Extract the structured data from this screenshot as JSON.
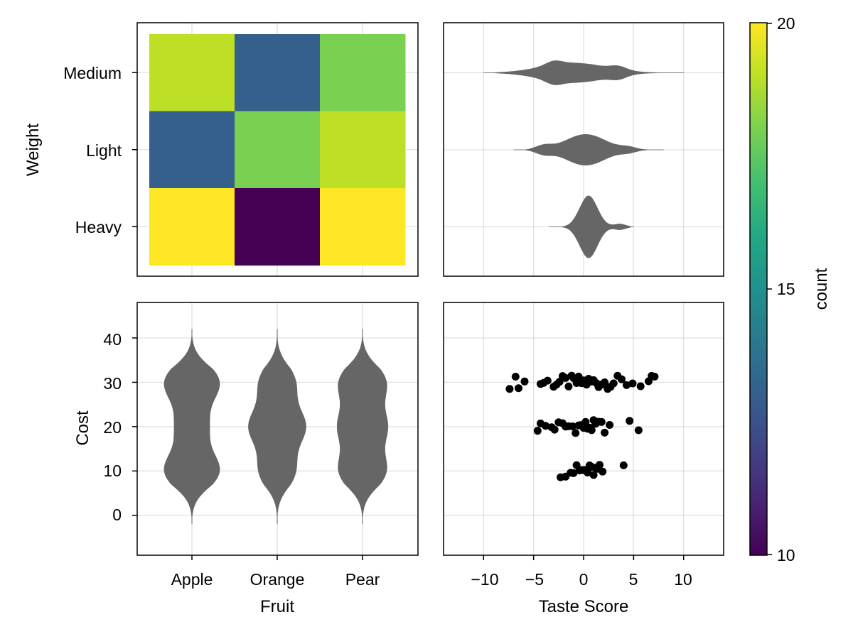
{
  "chart_data": [
    {
      "type": "heatmap",
      "title": "",
      "xlabel": "",
      "ylabel": "Weight",
      "x_categories": [
        "Apple",
        "Orange",
        "Pear"
      ],
      "y_categories": [
        "Heavy",
        "Light",
        "Medium"
      ],
      "values": {
        "Medium": [
          19,
          13,
          18
        ],
        "Light": [
          13,
          18,
          19
        ],
        "Heavy": [
          20,
          10,
          20
        ]
      },
      "colormap": "viridis",
      "colorrange": [
        10,
        20
      ]
    },
    {
      "type": "violin",
      "orientation": "horizontal",
      "xlabel": "",
      "ylabel": "",
      "categories": [
        "Heavy",
        "Light",
        "Medium"
      ],
      "xlim": [
        -14,
        14
      ],
      "xticks": [
        -10,
        -5,
        0,
        5,
        10
      ],
      "color": "#666666",
      "profiles": {
        "Medium": {
          "range": [
            -10,
            10
          ],
          "mode": -1,
          "spread": 3.2,
          "bumps": [
            {
              "x": -3,
              "w": 0.4
            },
            {
              "x": 3.5,
              "w": 0.35
            }
          ]
        },
        "Light": {
          "range": [
            -7,
            8
          ],
          "mode": 0.2,
          "spread": 2.0,
          "bumps": [
            {
              "x": -4,
              "w": 0.25
            },
            {
              "x": 4.5,
              "w": 0.15
            }
          ]
        },
        "Heavy": {
          "range": [
            -3.5,
            5
          ],
          "mode": 0.5,
          "spread": 0.9,
          "bumps": [
            {
              "x": 4,
              "w": 0.12
            }
          ]
        }
      }
    },
    {
      "type": "violin",
      "orientation": "vertical",
      "xlabel": "Fruit",
      "ylabel": "Cost",
      "categories": [
        "Apple",
        "Orange",
        "Pear"
      ],
      "ylim": [
        -9,
        48
      ],
      "yticks": [
        0,
        10,
        20,
        30,
        40
      ],
      "color": "#666666",
      "modes": {
        "Apple": [
          10,
          20,
          30
        ],
        "Orange": [
          10,
          20,
          30
        ],
        "Pear": [
          10,
          20,
          30
        ]
      },
      "range": [
        -2,
        42
      ]
    },
    {
      "type": "scatter",
      "xlabel": "Taste Score",
      "ylabel": "",
      "xlim": [
        -14,
        14
      ],
      "xticks": [
        -10,
        -5,
        0,
        5,
        10
      ],
      "ylim": [
        -9,
        48
      ],
      "yticks": [
        0,
        10,
        20,
        30,
        40
      ],
      "color": "#000000",
      "groups": [
        {
          "y": 30,
          "x": [
            -7.4,
            -6.8,
            -6.5,
            -5.9,
            -4.3,
            -4.0,
            -3.6,
            -3.0,
            -2.7,
            -2.4,
            -2.1,
            -1.8,
            -1.5,
            -1.2,
            -1.0,
            -0.7,
            -0.5,
            -0.2,
            0.0,
            0.3,
            0.5,
            0.8,
            1.0,
            1.3,
            1.5,
            1.8,
            2.1,
            2.4,
            2.7,
            3.0,
            3.4,
            3.8,
            4.3,
            4.9,
            5.7,
            6.5,
            6.8,
            7.1
          ]
        },
        {
          "y": 20,
          "x": [
            -4.6,
            -4.3,
            -3.8,
            -3.2,
            -2.9,
            -2.5,
            -2.1,
            -1.8,
            -1.5,
            -1.1,
            -0.8,
            -0.5,
            -0.3,
            0.0,
            0.2,
            0.4,
            0.6,
            0.8,
            1.0,
            1.2,
            1.5,
            1.8,
            2.1,
            2.6,
            4.6,
            5.5
          ]
        },
        {
          "y": 10,
          "x": [
            -2.3,
            -1.8,
            -1.3,
            -1.0,
            -0.7,
            -0.4,
            -0.2,
            0.0,
            0.1,
            0.3,
            0.4,
            0.6,
            0.8,
            1.0,
            1.2,
            1.4,
            1.6,
            1.9,
            4.0
          ]
        }
      ]
    },
    {
      "type": "colorbar",
      "label": "count",
      "range": [
        10,
        20
      ],
      "ticks": [
        10,
        15,
        20
      ],
      "colormap": "viridis"
    }
  ],
  "labels": {
    "heatmap": {
      "ylabel": "Weight",
      "ytick_medium": "Medium",
      "ytick_light": "Light",
      "ytick_heavy": "Heavy"
    },
    "violin_cost": {
      "ylabel": "Cost",
      "xlabel": "Fruit",
      "xtick_apple": "Apple",
      "xtick_orange": "Orange",
      "xtick_pear": "Pear",
      "ytick_0": "0",
      "ytick_10": "10",
      "ytick_20": "20",
      "ytick_30": "30",
      "ytick_40": "40"
    },
    "scatter": {
      "xlabel": "Taste Score",
      "xtick_m10": "−10",
      "xtick_m5": "−5",
      "xtick_0": "0",
      "xtick_5": "5",
      "xtick_10": "10"
    },
    "colorbar": {
      "label": "count",
      "tick_10": "10",
      "tick_15": "15",
      "tick_20": "20"
    }
  }
}
